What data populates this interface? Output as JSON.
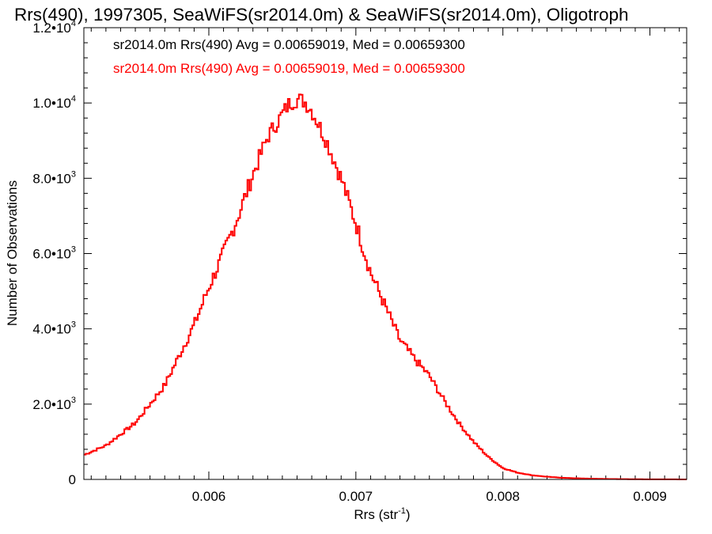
{
  "chart_data": {
    "type": "histogram",
    "title": "Rrs(490), 1997305, SeaWiFS(sr2014.0m) & SeaWiFS(sr2014.0m), Oligotroph",
    "xlabel_main": "Rrs (str",
    "xlabel_sup": "-1",
    "xlabel_close": ")",
    "ylabel": "Number of Observations",
    "xlim": [
      0.00515,
      0.00925
    ],
    "ylim": [
      0,
      12000
    ],
    "x_ticks": [
      {
        "value": 0.006,
        "label": "0.006"
      },
      {
        "value": 0.007,
        "label": "0.007"
      },
      {
        "value": 0.008,
        "label": "0.008"
      },
      {
        "value": 0.009,
        "label": "0.009"
      }
    ],
    "y_ticks": [
      {
        "value": 0,
        "mant": "0",
        "exp": ""
      },
      {
        "value": 2000,
        "mant": "2.0•10",
        "exp": "3"
      },
      {
        "value": 4000,
        "mant": "4.0•10",
        "exp": "3"
      },
      {
        "value": 6000,
        "mant": "6.0•10",
        "exp": "3"
      },
      {
        "value": 8000,
        "mant": "8.0•10",
        "exp": "3"
      },
      {
        "value": 10000,
        "mant": "1.0•10",
        "exp": "4"
      },
      {
        "value": 12000,
        "mant": "1.2•10",
        "exp": "4"
      }
    ],
    "legend": [
      {
        "text": "sr2014.0m Rrs(490) Avg = 0.00659019, Med = 0.00659300",
        "color": "#000000"
      },
      {
        "text": "sr2014.0m Rrs(490) Avg = 0.00659019, Med = 0.00659300",
        "color": "#ff0000"
      }
    ],
    "series": [
      {
        "color": "#ff0000",
        "x": [
          0.00515,
          0.0053,
          0.0055,
          0.0057,
          0.0058,
          0.0059,
          0.006,
          0.0061,
          0.0062,
          0.0063,
          0.0064,
          0.0065,
          0.00655,
          0.0066,
          0.00665,
          0.0067,
          0.0068,
          0.0069,
          0.007,
          0.0071,
          0.0072,
          0.0073,
          0.0074,
          0.0075,
          0.0076,
          0.0077,
          0.0078,
          0.0079,
          0.008,
          0.0081,
          0.0082,
          0.0083,
          0.0084,
          0.0085,
          0.0086,
          0.0087,
          0.0088,
          0.0089,
          0.009,
          0.0091,
          0.00925
        ],
        "values": [
          650,
          900,
          1500,
          2500,
          3300,
          4100,
          5100,
          6000,
          7000,
          8100,
          9100,
          9700,
          10000,
          10100,
          10050,
          9800,
          9000,
          8000,
          6800,
          5500,
          4600,
          3700,
          3200,
          2750,
          2100,
          1500,
          1000,
          600,
          300,
          180,
          110,
          70,
          45,
          30,
          20,
          12,
          8,
          5,
          3,
          2,
          1
        ]
      }
    ]
  }
}
